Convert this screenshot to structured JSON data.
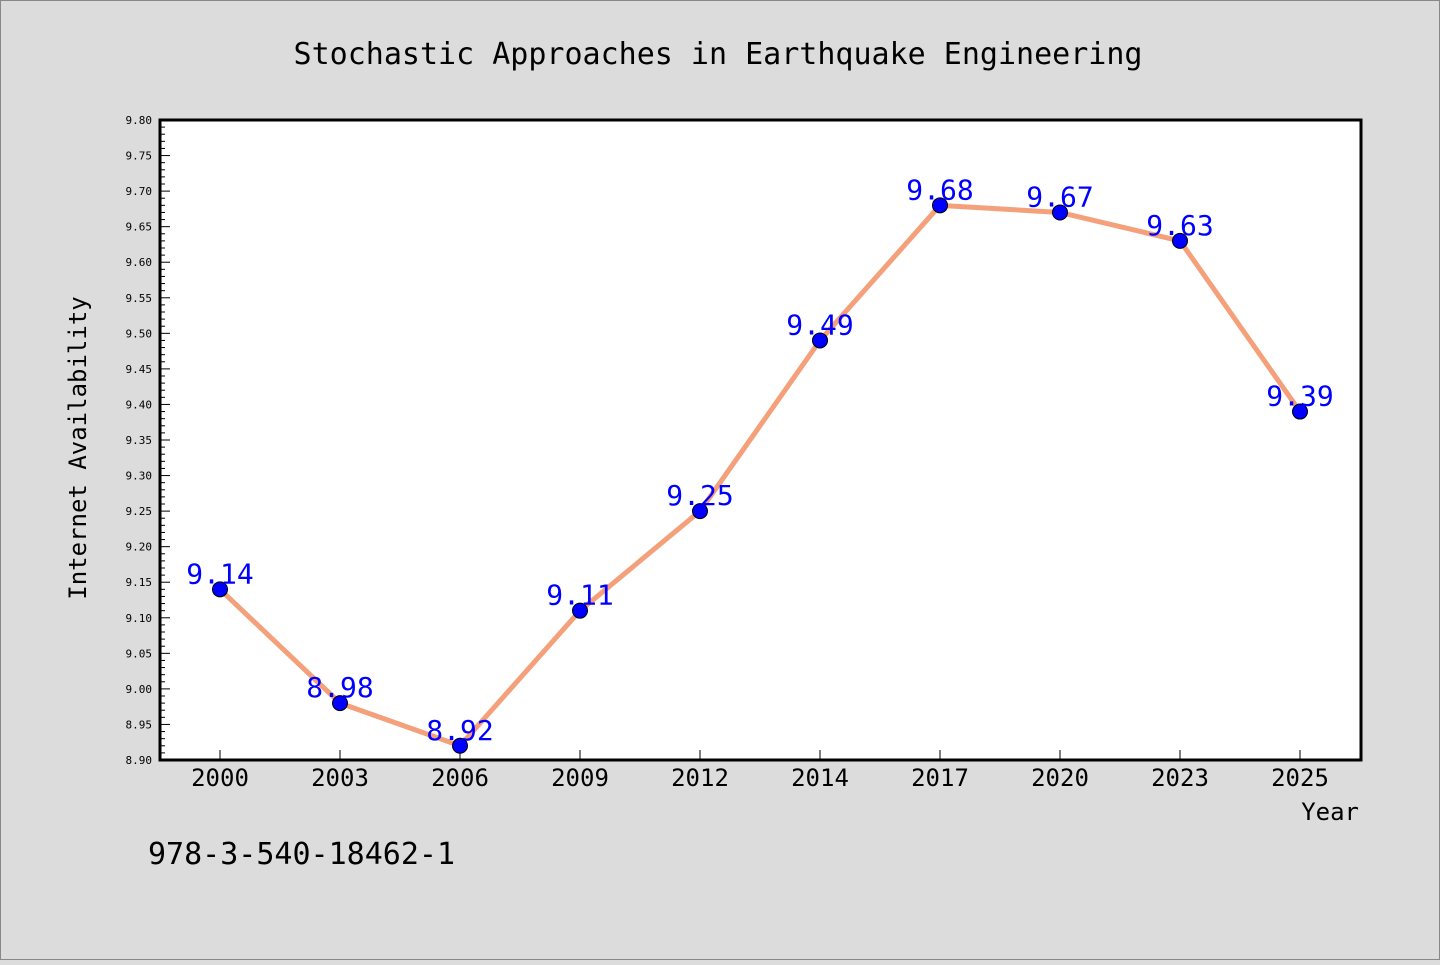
{
  "chart_data": {
    "type": "line",
    "title": "Stochastic Approaches in Earthquake Engineering",
    "xlabel": "Year",
    "ylabel": "Internet Availability",
    "categories": [
      "2000",
      "2003",
      "2006",
      "2009",
      "2012",
      "2014",
      "2017",
      "2020",
      "2023",
      "2025"
    ],
    "series": [
      {
        "values": [
          9.14,
          8.98,
          8.92,
          9.11,
          9.25,
          9.49,
          9.68,
          9.67,
          9.63,
          9.39
        ],
        "data_labels": [
          "9.14",
          "8.98",
          "8.92",
          "9.11",
          "9.25",
          "9.49",
          "9.68",
          "9.67",
          "9.63",
          "9.39"
        ],
        "line_color": "#f4a07a",
        "marker_color": "#0000ff"
      }
    ],
    "ylim": [
      8.9,
      9.8
    ],
    "yticks": [
      "8.90",
      "8.95",
      "9.00",
      "9.05",
      "9.10",
      "9.15",
      "9.20",
      "9.25",
      "9.30",
      "9.35",
      "9.40",
      "9.45",
      "9.50",
      "9.55",
      "9.60",
      "9.65",
      "9.70",
      "9.75",
      "9.80"
    ],
    "grid": false,
    "legend": "none",
    "background_color": "#dcdcdc",
    "plot_background_color": "#ffffff"
  },
  "footer": {
    "isbn": "978-3-540-18462-1"
  }
}
